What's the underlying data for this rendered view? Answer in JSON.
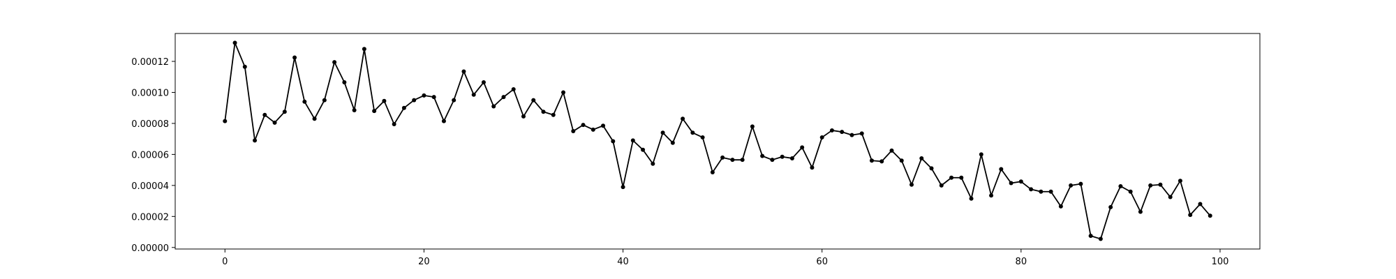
{
  "chart_data": {
    "type": "line",
    "title": "",
    "xlabel": "",
    "ylabel": "",
    "xlim": [
      -5,
      104
    ],
    "ylim": [
      -1e-06,
      0.000138
    ],
    "x_ticks": [
      0,
      20,
      40,
      60,
      80,
      100
    ],
    "x_tick_labels": [
      "0",
      "20",
      "40",
      "60",
      "80",
      "100"
    ],
    "y_ticks": [
      0.0,
      2e-05,
      4e-05,
      6e-05,
      8e-05,
      0.0001,
      0.00012
    ],
    "y_tick_labels": [
      "0.00000",
      "0.00002",
      "0.00004",
      "0.00006",
      "0.00008",
      "0.00010",
      "0.00012"
    ],
    "grid": false,
    "line_color": "#000000",
    "marker": "dot",
    "x": [
      0,
      1,
      2,
      3,
      4,
      5,
      6,
      7,
      8,
      9,
      10,
      11,
      12,
      13,
      14,
      15,
      16,
      17,
      18,
      19,
      20,
      21,
      22,
      23,
      24,
      25,
      26,
      27,
      28,
      29,
      30,
      31,
      32,
      33,
      34,
      35,
      36,
      37,
      38,
      39,
      40,
      41,
      42,
      43,
      44,
      45,
      46,
      47,
      48,
      49,
      50,
      51,
      52,
      53,
      54,
      55,
      56,
      57,
      58,
      59,
      60,
      61,
      62,
      63,
      64,
      65,
      66,
      67,
      68,
      69,
      70,
      71,
      72,
      73,
      74,
      75,
      76,
      77,
      78,
      79,
      80,
      81,
      82,
      83,
      84,
      85,
      86,
      87,
      88,
      89,
      90,
      91,
      92,
      93,
      94,
      95,
      96,
      97,
      98,
      99
    ],
    "values": [
      8.15e-05,
      0.000132,
      0.0001165,
      6.9e-05,
      8.55e-05,
      8.05e-05,
      8.75e-05,
      0.0001225,
      9.4e-05,
      8.3e-05,
      9.5e-05,
      0.0001195,
      0.0001065,
      8.85e-05,
      0.000128,
      8.8e-05,
      9.45e-05,
      7.95e-05,
      9e-05,
      9.5e-05,
      9.8e-05,
      9.7e-05,
      8.15e-05,
      9.5e-05,
      0.0001135,
      9.85e-05,
      0.0001065,
      9.1e-05,
      9.7e-05,
      0.000102,
      8.45e-05,
      9.5e-05,
      8.75e-05,
      8.55e-05,
      0.0001,
      7.5e-05,
      7.9e-05,
      7.6e-05,
      7.85e-05,
      6.85e-05,
      3.9e-05,
      6.9e-05,
      6.3e-05,
      5.4e-05,
      7.4e-05,
      6.75e-05,
      8.3e-05,
      7.4e-05,
      7.1e-05,
      4.85e-05,
      5.8e-05,
      5.65e-05,
      5.65e-05,
      7.8e-05,
      5.9e-05,
      5.65e-05,
      5.85e-05,
      5.75e-05,
      6.45e-05,
      5.15e-05,
      7.1e-05,
      7.55e-05,
      7.45e-05,
      7.25e-05,
      7.35e-05,
      5.6e-05,
      5.55e-05,
      6.25e-05,
      5.6e-05,
      4.05e-05,
      5.75e-05,
      5.1e-05,
      4e-05,
      4.5e-05,
      4.5e-05,
      3.15e-05,
      6e-05,
      3.35e-05,
      5.05e-05,
      4.15e-05,
      4.25e-05,
      3.75e-05,
      3.6e-05,
      3.6e-05,
      2.65e-05,
      4e-05,
      4.1e-05,
      7.5e-06,
      5.5e-06,
      2.6e-05,
      3.95e-05,
      3.6e-05,
      2.3e-05,
      4e-05,
      4.05e-05,
      3.25e-05,
      4.3e-05,
      2.1e-05,
      2.8e-05,
      2.05e-05
    ]
  }
}
